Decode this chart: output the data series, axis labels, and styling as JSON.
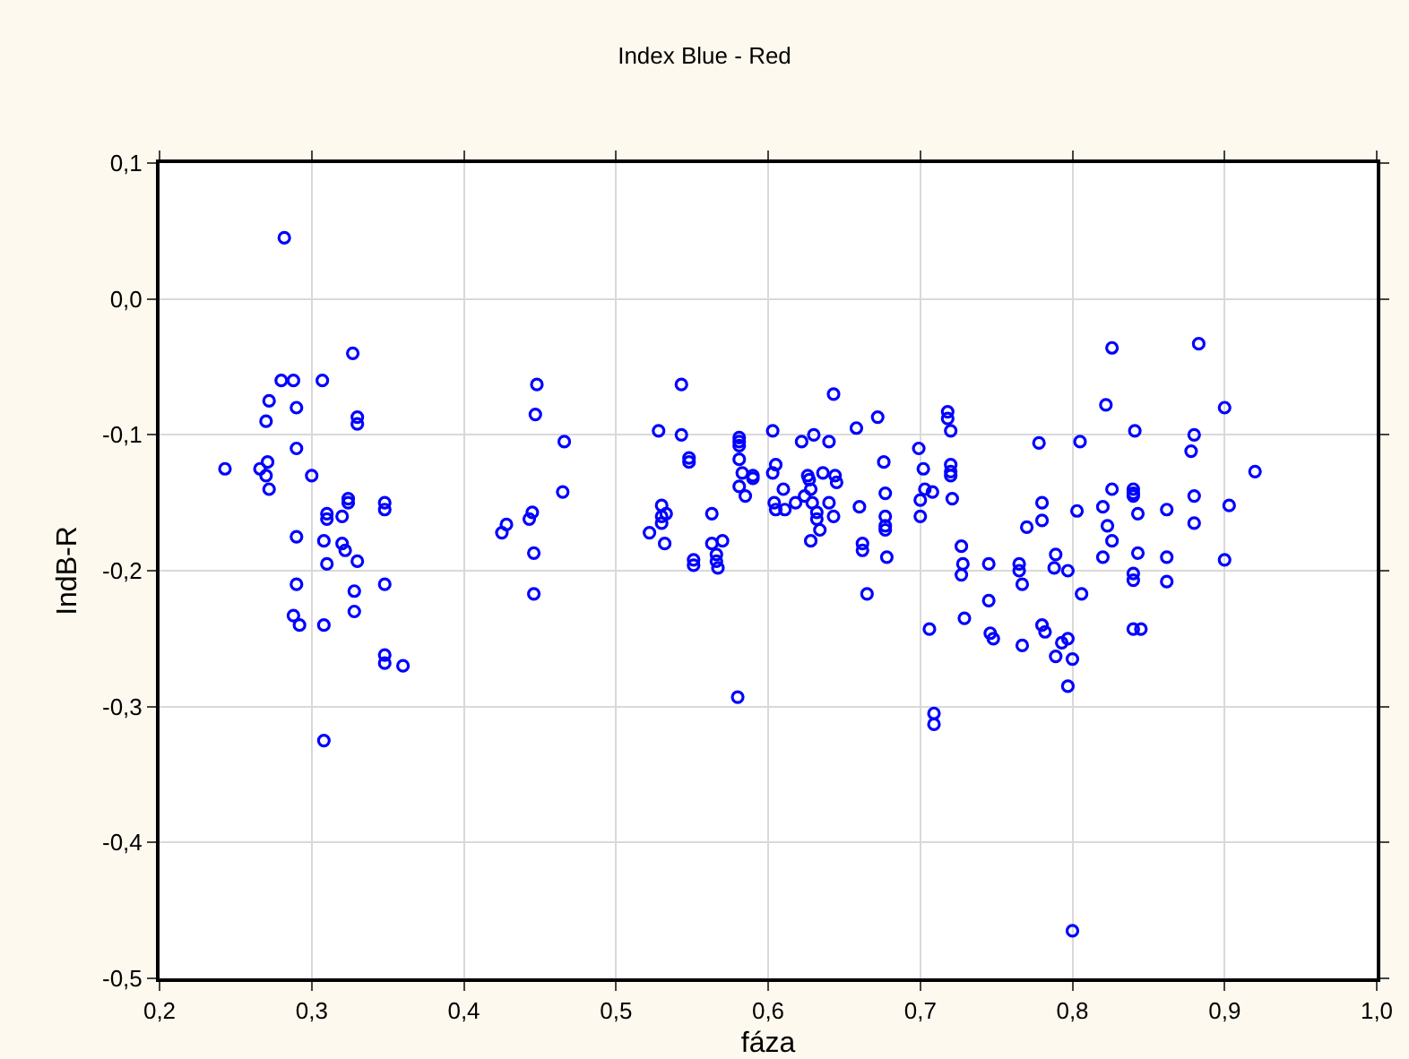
{
  "chart_data": {
    "type": "scatter",
    "title": "Index Blue - Red",
    "xlabel": "fáza",
    "ylabel": "IndB-R",
    "marker": "circle",
    "grid": true,
    "xlim": [
      0.2,
      1.0
    ],
    "ylim": [
      -0.5,
      0.1
    ],
    "xticks": [
      {
        "value": 0.2,
        "label": "0,2"
      },
      {
        "value": 0.3,
        "label": "0,3"
      },
      {
        "value": 0.4,
        "label": "0,4"
      },
      {
        "value": 0.5,
        "label": "0,5"
      },
      {
        "value": 0.6,
        "label": "0,6"
      },
      {
        "value": 0.7,
        "label": "0,7"
      },
      {
        "value": 0.8,
        "label": "0,8"
      },
      {
        "value": 0.9,
        "label": "0,9"
      },
      {
        "value": 1.0,
        "label": "1,0"
      }
    ],
    "yticks": [
      {
        "value": -0.5,
        "label": "-0,5"
      },
      {
        "value": -0.4,
        "label": "-0,4"
      },
      {
        "value": -0.3,
        "label": "-0,3"
      },
      {
        "value": -0.2,
        "label": "-0,2"
      },
      {
        "value": -0.1,
        "label": "-0,1"
      },
      {
        "value": 0,
        "label": "0,0"
      },
      {
        "value": 0.1,
        "label": "0,1"
      }
    ],
    "series": [
      {
        "color": "#0000ff",
        "x": [
          0.243,
          0.266,
          0.27,
          0.272,
          0.271,
          0.27,
          0.272,
          0.28,
          0.282,
          0.288,
          0.29,
          0.29,
          0.29,
          0.29,
          0.288,
          0.292,
          0.3,
          0.307,
          0.308,
          0.308,
          0.308,
          0.31,
          0.31,
          0.31,
          0.32,
          0.32,
          0.322,
          0.324,
          0.324,
          0.327,
          0.328,
          0.328,
          0.33,
          0.33,
          0.33,
          0.348,
          0.348,
          0.348,
          0.348,
          0.348,
          0.36,
          0.425,
          0.428,
          0.443,
          0.445,
          0.446,
          0.446,
          0.447,
          0.448,
          0.465,
          0.466,
          0.522,
          0.528,
          0.53,
          0.53,
          0.53,
          0.532,
          0.533,
          0.543,
          0.543,
          0.548,
          0.548,
          0.551,
          0.551,
          0.563,
          0.563,
          0.566,
          0.566,
          0.567,
          0.57,
          0.58,
          0.581,
          0.581,
          0.581,
          0.581,
          0.583,
          0.581,
          0.585,
          0.59,
          0.59,
          0.603,
          0.603,
          0.605,
          0.604,
          0.605,
          0.61,
          0.611,
          0.618,
          0.622,
          0.624,
          0.626,
          0.627,
          0.628,
          0.628,
          0.629,
          0.63,
          0.632,
          0.632,
          0.634,
          0.636,
          0.64,
          0.64,
          0.643,
          0.643,
          0.644,
          0.645,
          0.658,
          0.66,
          0.662,
          0.662,
          0.665,
          0.672,
          0.676,
          0.677,
          0.677,
          0.677,
          0.677,
          0.678,
          0.699,
          0.7,
          0.7,
          0.702,
          0.703,
          0.706,
          0.708,
          0.709,
          0.709,
          0.718,
          0.718,
          0.72,
          0.72,
          0.72,
          0.72,
          0.721,
          0.727,
          0.727,
          0.728,
          0.729,
          0.745,
          0.745,
          0.746,
          0.748,
          0.765,
          0.765,
          0.767,
          0.767,
          0.77,
          0.778,
          0.78,
          0.78,
          0.78,
          0.782,
          0.788,
          0.789,
          0.789,
          0.793,
          0.797,
          0.797,
          0.797,
          0.8,
          0.8,
          0.803,
          0.805,
          0.806,
          0.82,
          0.82,
          0.822,
          0.826,
          0.826,
          0.826,
          0.823,
          0.84,
          0.84,
          0.84,
          0.841,
          0.843,
          0.843,
          0.84,
          0.84,
          0.84,
          0.845,
          0.862,
          0.862,
          0.862,
          0.878,
          0.88,
          0.88,
          0.88,
          0.883,
          0.9,
          0.9,
          0.903,
          0.92
        ],
        "values": [
          -0.125,
          -0.125,
          -0.13,
          -0.14,
          -0.12,
          -0.09,
          -0.075,
          -0.06,
          0.045,
          -0.06,
          -0.08,
          -0.11,
          -0.175,
          -0.21,
          -0.233,
          -0.24,
          -0.13,
          -0.06,
          -0.24,
          -0.325,
          -0.178,
          -0.158,
          -0.162,
          -0.195,
          -0.16,
          -0.18,
          -0.185,
          -0.147,
          -0.15,
          -0.04,
          -0.215,
          -0.23,
          -0.087,
          -0.092,
          -0.193,
          -0.15,
          -0.155,
          -0.21,
          -0.262,
          -0.268,
          -0.27,
          -0.172,
          -0.166,
          -0.162,
          -0.157,
          -0.187,
          -0.217,
          -0.085,
          -0.063,
          -0.142,
          -0.105,
          -0.172,
          -0.097,
          -0.152,
          -0.16,
          -0.165,
          -0.18,
          -0.158,
          -0.063,
          -0.1,
          -0.117,
          -0.12,
          -0.192,
          -0.196,
          -0.158,
          -0.18,
          -0.188,
          -0.193,
          -0.198,
          -0.178,
          -0.293,
          -0.102,
          -0.105,
          -0.108,
          -0.118,
          -0.128,
          -0.138,
          -0.145,
          -0.132,
          -0.13,
          -0.097,
          -0.128,
          -0.122,
          -0.15,
          -0.155,
          -0.14,
          -0.155,
          -0.15,
          -0.105,
          -0.145,
          -0.13,
          -0.133,
          -0.14,
          -0.178,
          -0.15,
          -0.1,
          -0.157,
          -0.162,
          -0.17,
          -0.128,
          -0.15,
          -0.105,
          -0.07,
          -0.16,
          -0.13,
          -0.135,
          -0.095,
          -0.153,
          -0.18,
          -0.185,
          -0.217,
          -0.087,
          -0.12,
          -0.143,
          -0.16,
          -0.167,
          -0.17,
          -0.19,
          -0.11,
          -0.148,
          -0.16,
          -0.125,
          -0.14,
          -0.243,
          -0.142,
          -0.305,
          -0.313,
          -0.083,
          -0.088,
          -0.097,
          -0.122,
          -0.127,
          -0.13,
          -0.147,
          -0.182,
          -0.203,
          -0.195,
          -0.235,
          -0.195,
          -0.222,
          -0.246,
          -0.25,
          -0.195,
          -0.2,
          -0.21,
          -0.255,
          -0.168,
          -0.106,
          -0.15,
          -0.163,
          -0.24,
          -0.245,
          -0.198,
          -0.188,
          -0.263,
          -0.253,
          -0.285,
          -0.2,
          -0.25,
          -0.465,
          -0.265,
          -0.156,
          -0.105,
          -0.217,
          -0.153,
          -0.19,
          -0.078,
          -0.036,
          -0.14,
          -0.178,
          -0.167,
          -0.14,
          -0.143,
          -0.145,
          -0.097,
          -0.158,
          -0.187,
          -0.202,
          -0.207,
          -0.243,
          -0.243,
          -0.155,
          -0.19,
          -0.208,
          -0.112,
          -0.1,
          -0.145,
          -0.165,
          -0.033,
          -0.08,
          -0.192,
          -0.152,
          -0.127
        ]
      }
    ]
  }
}
